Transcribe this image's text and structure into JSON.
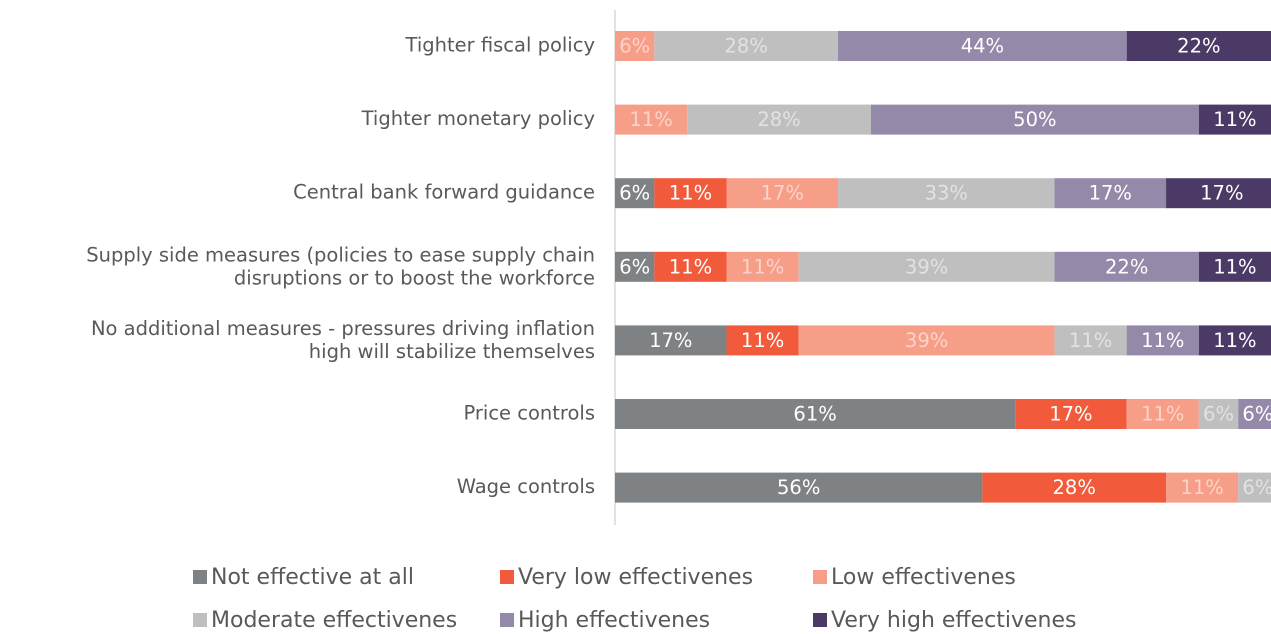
{
  "chart_data": {
    "type": "stacked-barh",
    "categories": [
      "Tighter fiscal policy",
      "Tighter monetary policy",
      "Central bank forward guidance",
      "Supply side measures (policies to ease supply chain\ndisruptions or to boost the workforce",
      "No additional measures - pressures driving inflation\nhigh will stabilize themselves",
      "Price controls",
      "Wage controls"
    ],
    "xlim": [
      0,
      100
    ],
    "series": [
      {
        "name": "Not effective at all",
        "color": "#7f8284",
        "values": [
          null,
          null,
          6,
          6,
          17,
          61,
          56
        ],
        "value_labels": [
          null,
          null,
          "6%",
          "6%",
          "17%",
          "61%",
          "56%"
        ]
      },
      {
        "name": "Very low effectivenes",
        "color": "#f15a3a",
        "values": [
          null,
          null,
          11,
          11,
          11,
          17,
          28
        ],
        "value_labels": [
          null,
          null,
          "11%",
          "11%",
          "11%",
          "17%",
          "28%"
        ]
      },
      {
        "name": "Low effectivenes",
        "color": "#f79e88",
        "values": [
          6,
          11,
          17,
          11,
          39,
          11,
          11
        ],
        "value_labels": [
          "6%",
          "11%",
          "17%",
          "11%",
          "39%",
          "11%",
          "11%"
        ]
      },
      {
        "name": "Moderate effectivenes",
        "color": "#bfbfbf",
        "values": [
          28,
          28,
          33,
          39,
          11,
          6,
          6
        ],
        "value_labels": [
          "28%",
          "28%",
          "33%",
          "39%",
          "11%",
          "6%",
          "6%"
        ]
      },
      {
        "name": "High effectivenes",
        "color": "#9589a9",
        "values": [
          44,
          50,
          17,
          22,
          11,
          6,
          null
        ],
        "value_labels": [
          "44%",
          "50%",
          "17%",
          "22%",
          "11%",
          "6%",
          null
        ]
      },
      {
        "name": "Very high effectivenes",
        "color": "#4b3a66",
        "values": [
          22,
          11,
          17,
          11,
          11,
          null,
          null
        ],
        "value_labels": [
          "22%",
          "11%",
          "17%",
          "11%",
          "11%",
          null,
          null
        ]
      }
    ],
    "legend": "bottom"
  }
}
